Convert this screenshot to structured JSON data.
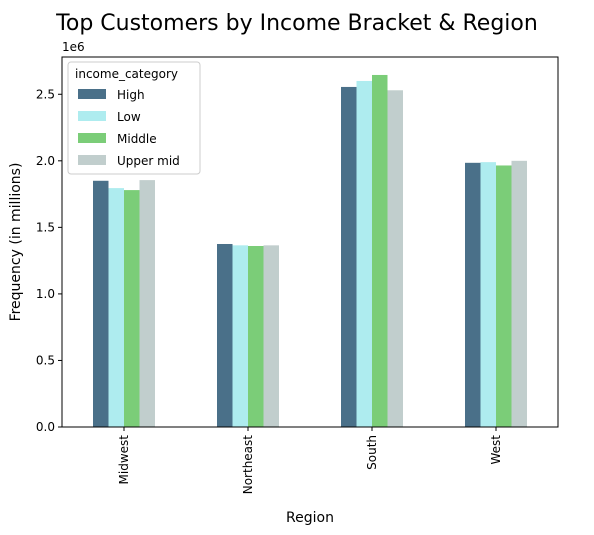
{
  "chart_data": {
    "type": "bar",
    "title": "Top Customers by Income Bracket & Region",
    "xlabel": "Region",
    "ylabel": "Frequency (in millions)",
    "y_offset_label": "1e6",
    "categories": [
      "Midwest",
      "Northeast",
      "South",
      "West"
    ],
    "series": [
      {
        "name": "High",
        "color": "#4a7089",
        "values": [
          1850000,
          1375000,
          2555000,
          1985000
        ]
      },
      {
        "name": "Low",
        "color": "#aeecef",
        "values": [
          1795000,
          1365000,
          2600000,
          1990000
        ]
      },
      {
        "name": "Middle",
        "color": "#7bcd78",
        "values": [
          1780000,
          1360000,
          2645000,
          1965000
        ]
      },
      {
        "name": "Upper mid",
        "color": "#c1cecd",
        "values": [
          1855000,
          1365000,
          2530000,
          2000000
        ]
      }
    ],
    "ylim": [
      0,
      2780000
    ],
    "yticks": [
      0,
      500000,
      1000000,
      1500000,
      2000000,
      2500000
    ],
    "ytick_labels": [
      "0.0",
      "0.5",
      "1.0",
      "1.5",
      "2.0",
      "2.5"
    ],
    "legend": {
      "title": "income_category",
      "position": "top-left"
    },
    "grid": false
  }
}
